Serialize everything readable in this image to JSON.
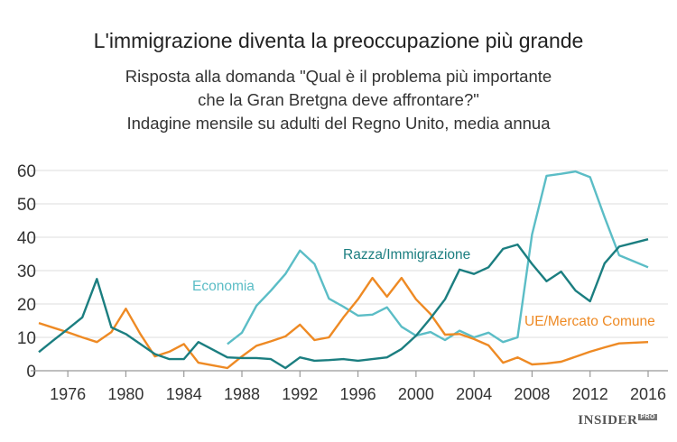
{
  "title": "L'immigrazione diventa la preoccupazione più grande",
  "subtitle": [
    "Risposta alla domanda \"Qual è il problema più importante",
    "che la Gran Bretgna deve affrontare?\"",
    "Indagine mensile su adulti del Regno Unito, media annua"
  ],
  "logo": {
    "text": "INSIDER",
    "badge": "PRO"
  },
  "chart_data": {
    "type": "line",
    "title": "L'immigrazione diventa la preoccupazione più grande",
    "xlabel": "",
    "ylabel": "",
    "xlim": [
      1974,
      2016
    ],
    "ylim": [
      0,
      60
    ],
    "grid": true,
    "xticks": [
      "1976",
      "1980",
      "1984",
      "1988",
      "1992",
      "1996",
      "2000",
      "2004",
      "2008",
      "2012",
      "2016"
    ],
    "yticks": [
      "0",
      "10",
      "20",
      "30",
      "40",
      "50",
      "60"
    ],
    "series": [
      {
        "name": "Razza/Immigrazione",
        "color": "#1b7e80",
        "x": [
          1974,
          1975,
          1976,
          1977,
          1978,
          1979,
          1980,
          1981,
          1982,
          1983,
          1984,
          1985,
          1986,
          1987,
          1988,
          1989,
          1990,
          1991,
          1992,
          1993,
          1994,
          1995,
          1996,
          1997,
          1998,
          1999,
          2000,
          2001,
          2002,
          2003,
          2004,
          2005,
          2006,
          2007,
          2008,
          2009,
          2010,
          2011,
          2012,
          2013,
          2014,
          2015,
          2016
        ],
        "y": [
          5.6,
          9.1,
          12.5,
          16,
          27.5,
          13,
          11,
          8,
          5,
          3.5,
          3.5,
          8.6,
          6.3,
          4,
          3.8,
          3.8,
          3.5,
          0.8,
          4,
          3,
          3.2,
          3.5,
          3,
          3.5,
          4,
          6.5,
          10.5,
          15.7,
          21.4,
          30.3,
          29,
          31,
          36.5,
          37.8,
          32,
          26.8,
          29.7,
          24,
          20.8,
          32.2,
          37.2,
          38.3,
          39.4
        ]
      },
      {
        "name": "Economia",
        "color": "#5bbdc6",
        "x": [
          1987,
          1988,
          1989,
          1990,
          1991,
          1992,
          1993,
          1994,
          1995,
          1996,
          1997,
          1998,
          1999,
          2000,
          2001,
          2002,
          2003,
          2004,
          2005,
          2006,
          2007,
          2008,
          2009,
          2010,
          2011,
          2012,
          2013,
          2014,
          2015,
          2016
        ],
        "y": [
          8,
          11.4,
          19.5,
          24,
          29,
          36,
          32,
          21.6,
          19.2,
          16.5,
          16.8,
          19,
          13.2,
          10.5,
          11.6,
          9.2,
          12,
          10,
          11.4,
          8.6,
          10,
          40.8,
          58.4,
          59,
          59.7,
          58,
          46,
          34.6,
          32.8,
          31
        ]
      },
      {
        "name": "UE/Mercato Comune",
        "color": "#ee8a24",
        "x": [
          1974,
          1975,
          1976,
          1977,
          1978,
          1979,
          1980,
          1981,
          1982,
          1983,
          1984,
          1985,
          1986,
          1987,
          1988,
          1989,
          1990,
          1991,
          1992,
          1993,
          1994,
          1995,
          1996,
          1997,
          1998,
          1999,
          2000,
          2001,
          2002,
          2003,
          2004,
          2005,
          2006,
          2007,
          2008,
          2009,
          2010,
          2011,
          2012,
          2013,
          2014,
          2015,
          2016
        ],
        "y": [
          14.3,
          12.9,
          11.5,
          10,
          8.6,
          11.6,
          18.6,
          11,
          4.3,
          5.7,
          8,
          2.4,
          1.6,
          0.8,
          4.3,
          7.5,
          8.8,
          10.3,
          13.8,
          9.2,
          10,
          16,
          21.4,
          27.8,
          22.2,
          27.8,
          21.4,
          17,
          10.8,
          11,
          9.5,
          7.6,
          2.4,
          4,
          1.9,
          2.2,
          2.7,
          4.2,
          5.7,
          7,
          8.2,
          8.4,
          8.6
        ]
      }
    ],
    "labels": [
      "Razza/Immigrazione",
      "Economia",
      "UE/Mercato Comune"
    ]
  }
}
